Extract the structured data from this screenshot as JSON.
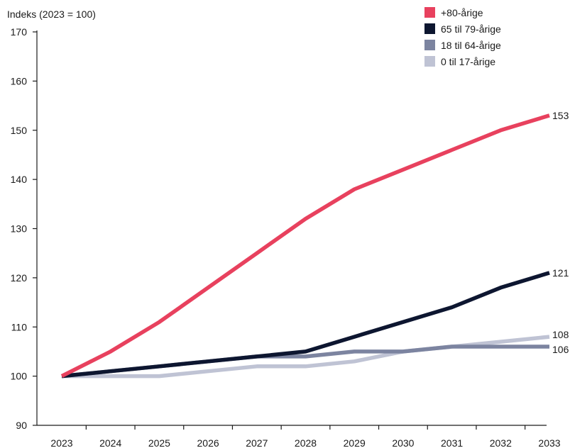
{
  "chart_data": {
    "type": "line",
    "title": "",
    "ylabel": "Indeks (2023 = 100)",
    "xlabel": "",
    "x": [
      "2023",
      "2024",
      "2025",
      "2026",
      "2027",
      "2028",
      "2029",
      "2030",
      "2031",
      "2032",
      "2033"
    ],
    "ylim": [
      90,
      170
    ],
    "yticks": [
      90,
      100,
      110,
      120,
      130,
      140,
      150,
      160,
      170
    ],
    "grid": false,
    "legend_position": "top-right",
    "series": [
      {
        "name": "+80-årige",
        "color": "#e8415e",
        "end_label": "153",
        "values": [
          100,
          105,
          111,
          118,
          125,
          132,
          138,
          142,
          146,
          150,
          153
        ]
      },
      {
        "name": "65 til 79-årige",
        "color": "#0d1630",
        "end_label": "121",
        "values": [
          100,
          101,
          102,
          103,
          104,
          105,
          108,
          111,
          114,
          118,
          121
        ]
      },
      {
        "name": "18 til 64-årige",
        "color": "#7c84a0",
        "end_label": "106",
        "values": [
          100,
          101,
          102,
          103,
          104,
          104,
          105,
          105,
          106,
          106,
          106
        ]
      },
      {
        "name": "0 til 17-årige",
        "color": "#bfc3d4",
        "end_label": "108",
        "values": [
          100,
          100,
          100,
          101,
          102,
          102,
          103,
          105,
          106,
          107,
          108
        ]
      }
    ]
  }
}
